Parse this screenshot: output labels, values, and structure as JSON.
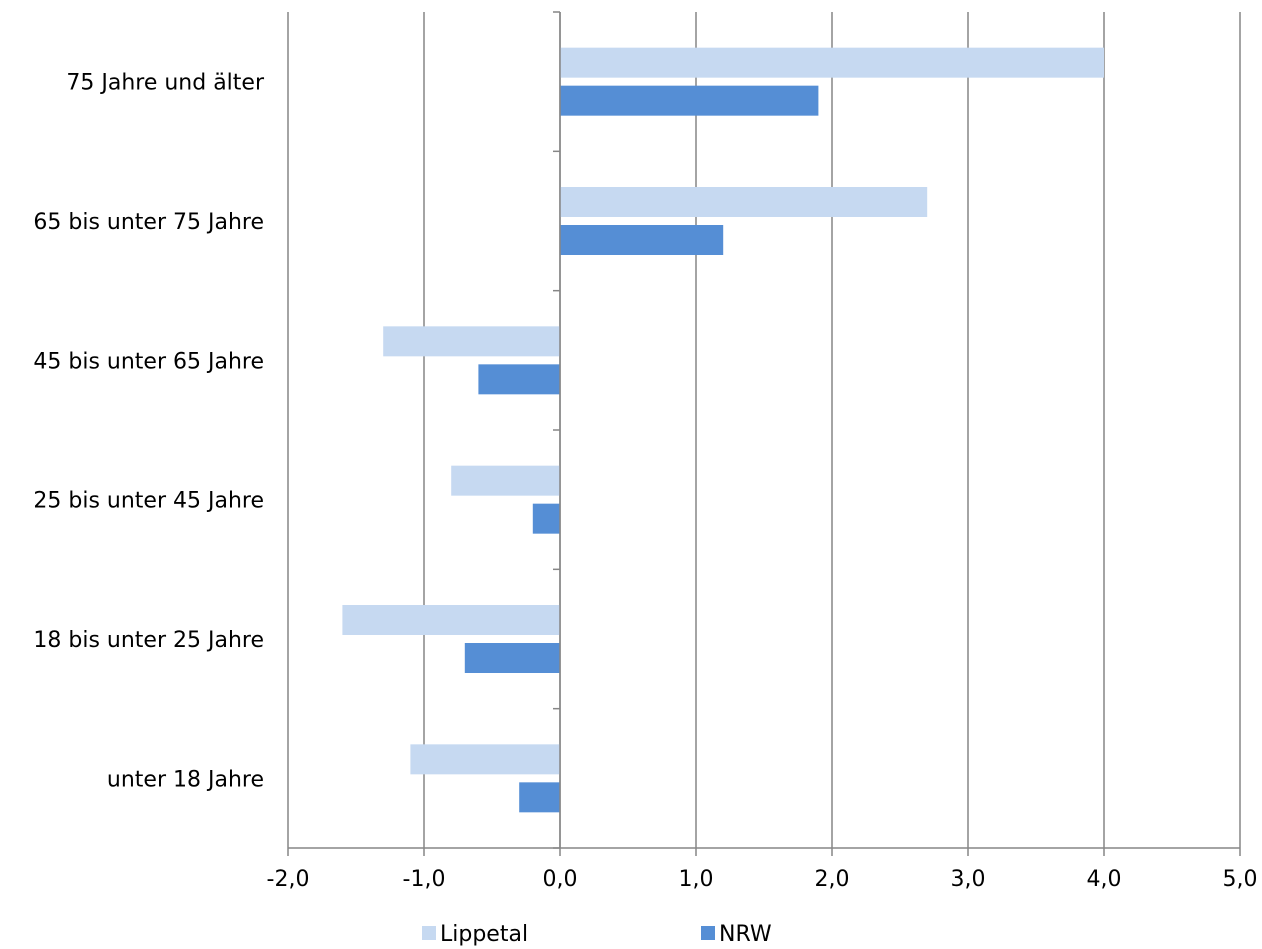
{
  "chart_data": {
    "type": "bar",
    "orientation": "horizontal",
    "categories": [
      "75 Jahre und älter",
      "65 bis unter 75 Jahre",
      "45 bis unter 65 Jahre",
      "25 bis unter 45 Jahre",
      "18 bis unter 25 Jahre",
      "unter 18 Jahre"
    ],
    "series": [
      {
        "name": "Lippetal",
        "color": "#C6D9F1",
        "values": [
          4.0,
          2.7,
          -1.3,
          -0.8,
          -1.6,
          -1.1
        ]
      },
      {
        "name": "NRW",
        "color": "#558ED5",
        "values": [
          1.9,
          1.2,
          -0.6,
          -0.2,
          -0.7,
          -0.3
        ]
      }
    ],
    "xlim": [
      -2.0,
      5.0
    ],
    "xticks": [
      -2.0,
      -1.0,
      0.0,
      1.0,
      2.0,
      3.0,
      4.0,
      5.0
    ],
    "xtick_labels": [
      "-2,0",
      "-1,0",
      "0,0",
      "1,0",
      "2,0",
      "3,0",
      "4,0",
      "5,0"
    ],
    "grid": "vertical",
    "legend_position": "bottom",
    "title": "",
    "xlabel": "",
    "ylabel": ""
  }
}
